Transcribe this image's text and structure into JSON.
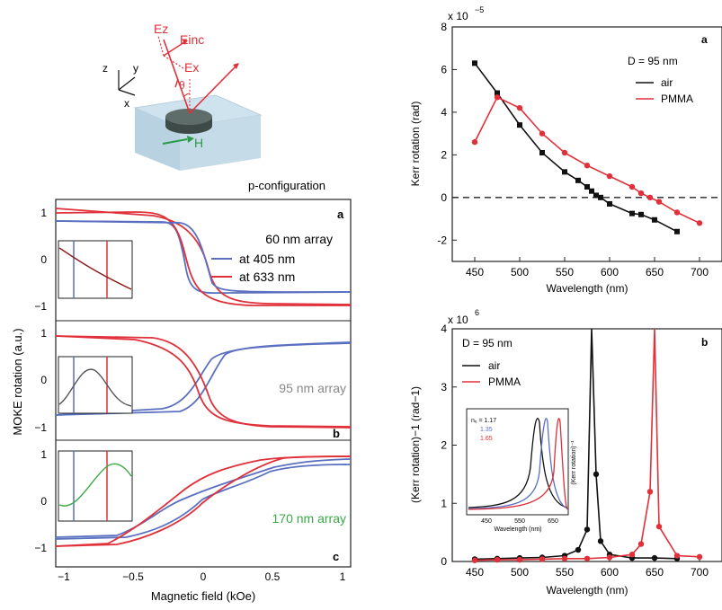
{
  "schematic": {
    "config_label": "p-configuration",
    "E_z": "Ez",
    "E_inc": "Einc",
    "E_x": "Ex",
    "theta": "θ",
    "H": "H",
    "axes": [
      "z",
      "y",
      "x"
    ]
  },
  "left_panel": {
    "ylabel": "MOKE rotation (a.u.)",
    "xlabel": "Magnetic field (kOe)",
    "legend": [
      {
        "name": "at 405 nm",
        "color": "#5a6fc0"
      },
      {
        "name": "at 633 nm",
        "color": "#e0303a"
      }
    ],
    "x_ticks": [
      "−1",
      "−0.5",
      "0",
      "0.5",
      "1"
    ],
    "y_ticks": [
      "1",
      "0",
      "−1"
    ],
    "subpanels": [
      {
        "letter": "a",
        "array": "60 nm array",
        "array_color": "#b22222"
      },
      {
        "letter": "b",
        "array": "95 nm array",
        "array_color": "#888888"
      },
      {
        "letter": "c",
        "array": "170 nm array",
        "array_color": "#39a845"
      }
    ]
  },
  "chart_data": [
    {
      "type": "line",
      "panel": "a",
      "title": "",
      "xlabel": "Wavelength (nm)",
      "ylabel": "Kerr rotation (rad)",
      "scale_label": "x 10",
      "scale_exp": "−5",
      "annotation": "D = 95 nm",
      "xlim": [
        425,
        725
      ],
      "ylim": [
        -3,
        8
      ],
      "x_ticks": [
        450,
        500,
        550,
        600,
        650,
        700
      ],
      "y_ticks": [
        -2,
        0,
        2,
        4,
        6,
        8
      ],
      "series": [
        {
          "name": "air",
          "color": "#111111",
          "x": [
            450,
            475,
            500,
            525,
            550,
            565,
            575,
            580,
            585,
            590,
            600,
            625,
            635,
            650,
            675
          ],
          "y": [
            6.3,
            4.9,
            3.4,
            2.1,
            1.2,
            0.8,
            0.5,
            0.3,
            0.1,
            0.0,
            -0.3,
            -0.75,
            -0.8,
            -1.05,
            -1.6
          ]
        },
        {
          "name": "PMMA",
          "color": "#e0303a",
          "x": [
            450,
            475,
            500,
            525,
            550,
            575,
            600,
            625,
            635,
            645,
            655,
            675,
            700
          ],
          "y": [
            2.6,
            4.7,
            4.2,
            3.0,
            2.1,
            1.5,
            1.0,
            0.5,
            0.2,
            0.0,
            -0.2,
            -0.7,
            -1.2
          ]
        }
      ]
    },
    {
      "type": "line",
      "panel": "b",
      "title": "",
      "xlabel": "Wavelength (nm)",
      "ylabel": "(Kerr rotation)−1 (rad−1)",
      "scale_label": "x 10",
      "scale_exp": "6",
      "annotation": "D = 95 nm",
      "xlim": [
        425,
        725
      ],
      "ylim": [
        0,
        4
      ],
      "x_ticks": [
        450,
        500,
        550,
        600,
        650,
        700
      ],
      "y_ticks": [
        0,
        1,
        2,
        3,
        4
      ],
      "series": [
        {
          "name": "air",
          "color": "#111111",
          "x": [
            450,
            475,
            500,
            525,
            550,
            565,
            575,
            580,
            585,
            590,
            600,
            625,
            650,
            675
          ],
          "y": [
            0.04,
            0.05,
            0.06,
            0.07,
            0.1,
            0.2,
            0.55,
            4,
            1.5,
            0.35,
            0.12,
            0.06,
            0.06,
            0.05
          ]
        },
        {
          "name": "PMMA",
          "color": "#e0303a",
          "x": [
            450,
            475,
            500,
            525,
            550,
            575,
            600,
            625,
            635,
            645,
            650,
            655,
            675,
            700
          ],
          "y": [
            0.02,
            0.03,
            0.03,
            0.04,
            0.05,
            0.05,
            0.07,
            0.12,
            0.3,
            1.2,
            4,
            0.6,
            0.1,
            0.08
          ]
        }
      ],
      "inset": {
        "ylabel": "(Kerr rotation)⁻¹",
        "xlabel": "Wavelength (nm)",
        "x_ticks": [
          "450",
          "550",
          "650"
        ],
        "labels": [
          {
            "text": "nₑ = 1.17",
            "color": "#111111"
          },
          {
            "text": "1.35",
            "color": "#5a6fc0"
          },
          {
            "text": "1.65",
            "color": "#e0303a"
          }
        ]
      }
    }
  ]
}
